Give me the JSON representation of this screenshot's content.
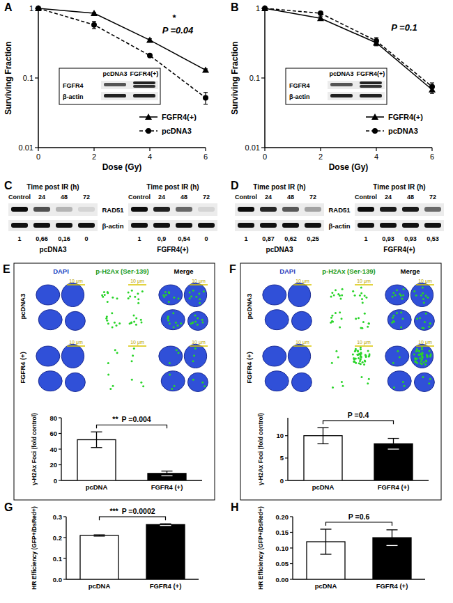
{
  "chart_data": [
    {
      "panel": "A",
      "type": "line",
      "log": "y",
      "x": [
        0,
        2,
        4,
        6
      ],
      "xlim": [
        0,
        6
      ],
      "xticks": [
        0,
        2,
        4,
        6
      ],
      "ylim": [
        0.01,
        1
      ],
      "yticks": [
        0.01,
        0.1,
        1
      ],
      "x_label": "Dose (Gy)",
      "y_label": "Surviving Fraction",
      "legend": "lower right",
      "series": [
        {
          "name": "FGFR4(+)",
          "color": "#000000",
          "marker": "triangle",
          "line_style": "solid",
          "values": [
            1,
            0.85,
            0.35,
            0.13
          ],
          "errors": [
            0,
            0.02,
            0.015,
            0.005
          ]
        },
        {
          "name": "pcDNA3",
          "color": "#000000",
          "marker": "circle",
          "line_style": "dashed",
          "values": [
            1,
            0.58,
            0.21,
            0.052
          ],
          "errors": [
            0,
            0.07,
            0.01,
            0.01
          ]
        }
      ],
      "annotations": [
        "*",
        "P =0.04"
      ],
      "inset": {
        "columns": [
          "pcDNA3",
          "FGFR4(+)"
        ],
        "rows": [
          "FGFR4",
          "β-actin"
        ]
      }
    },
    {
      "panel": "B",
      "type": "line",
      "log": "y",
      "x": [
        0,
        2,
        4,
        6
      ],
      "xlim": [
        0,
        6
      ],
      "xticks": [
        0,
        2,
        4,
        6
      ],
      "ylim": [
        0.01,
        1
      ],
      "yticks": [
        0.01,
        0.1,
        1
      ],
      "x_label": "Dose (Gy)",
      "y_label": "Surviving Fraction",
      "legend": "lower right",
      "series": [
        {
          "name": "FGFR4(+)",
          "color": "#000000",
          "marker": "triangle",
          "line_style": "solid",
          "values": [
            1,
            0.72,
            0.32,
            0.068
          ],
          "errors": [
            0,
            0.04,
            0.03,
            0.008
          ]
        },
        {
          "name": "pcDNA3",
          "color": "#000000",
          "marker": "circle",
          "line_style": "dashed",
          "values": [
            1,
            0.85,
            0.34,
            0.075
          ],
          "errors": [
            0,
            0.03,
            0.04,
            0.01
          ]
        }
      ],
      "annotations": [
        "P =0.1"
      ],
      "inset": {
        "columns": [
          "pcDNA3",
          "FGFR4(+)"
        ],
        "rows": [
          "FGFR4",
          "β-actin"
        ]
      }
    },
    {
      "panel": "E",
      "type": "bar",
      "categories": [
        "pcDNA",
        "FGFR4 (+)"
      ],
      "values": [
        52,
        9
      ],
      "errors": [
        10,
        3
      ],
      "colors": [
        "#ffffff",
        "#000000"
      ],
      "ylim": [
        0,
        80
      ],
      "yticks": [
        0,
        20,
        40,
        60,
        80
      ],
      "y_label": "γ-H2Ax Foci (fold control)",
      "annotations": [
        "**",
        "P =0.004"
      ],
      "micrograph": {
        "columns": [
          "DAPI",
          "p-H2Ax (Ser-139)",
          "Merge"
        ],
        "rows": [
          "pcDNA3",
          "FGFR4 (+)"
        ],
        "scale_bar": "10 μm"
      }
    },
    {
      "panel": "F",
      "type": "bar",
      "categories": [
        "pcDNA",
        "FGFR4 (+)"
      ],
      "values": [
        10,
        8.2
      ],
      "errors": [
        1.8,
        1.2
      ],
      "colors": [
        "#ffffff",
        "#000000"
      ],
      "ylim": [
        0,
        14
      ],
      "yticks": [
        0,
        5,
        10
      ],
      "y_label": "γ-H2Ax Foci (fold control)",
      "annotations": [
        "P =0.4"
      ],
      "micrograph": {
        "columns": [
          "DAPI",
          "p-H2Ax (Ser-139)",
          "Merge"
        ],
        "rows": [
          "pcDNA3",
          "FGFR4 (+)"
        ],
        "scale_bar": "10 μm"
      }
    },
    {
      "panel": "G",
      "type": "bar",
      "categories": [
        "pcDNA",
        "FGFR4 (+)"
      ],
      "values": [
        0.21,
        0.262
      ],
      "errors": [
        0.003,
        0.004
      ],
      "colors": [
        "#ffffff",
        "#000000"
      ],
      "ylim": [
        0,
        0.3
      ],
      "yticks": [
        {
          "value": 0,
          "label": "0.0"
        },
        0.1,
        0.2,
        0.3
      ],
      "y_label": "HR Efficiency (GFP+/DsRed+)",
      "annotations": [
        "***",
        "P =0.0002"
      ]
    },
    {
      "panel": "H",
      "type": "bar",
      "categories": [
        "pcDNA",
        "FGFR4 (+)"
      ],
      "values": [
        0.12,
        0.133
      ],
      "errors": [
        0.04,
        0.025
      ],
      "colors": [
        "#ffffff",
        "#000000"
      ],
      "ylim": [
        0,
        0.2
      ],
      "yticks": [
        {
          "value": 0,
          "label": "0.00"
        },
        {
          "value": 0.05,
          "label": "0.05"
        },
        {
          "value": 0.1,
          "label": "0.10"
        },
        {
          "value": 0.15,
          "label": "0.15"
        },
        {
          "value": 0.2,
          "label": "0.20"
        }
      ],
      "y_label": "HR Efficiency (GFP+/DsRed+)",
      "annotations": [
        "P =0.6"
      ]
    }
  ],
  "blots": [
    {
      "panel": "C",
      "header": "Time post IR (h)",
      "lanes": [
        "Control",
        "24",
        "48",
        "72"
      ],
      "rows": [
        "RAD51",
        "β-actin"
      ],
      "groups": [
        {
          "name": "pcDNA3",
          "values": [
            1,
            0.66,
            0.16,
            0
          ],
          "value_labels": [
            "1",
            "0,66",
            "0,16",
            "0"
          ]
        },
        {
          "name": "FGFR4(+)",
          "values": [
            1,
            0.9,
            0.54,
            0
          ],
          "value_labels": [
            "1",
            "0,9",
            "0,54",
            "0"
          ]
        }
      ]
    },
    {
      "panel": "D",
      "header": "Time post IR (h)",
      "lanes": [
        "Control",
        "24",
        "48",
        "72"
      ],
      "rows": [
        "RAD51",
        "β-actin"
      ],
      "groups": [
        {
          "name": "pcDNA3",
          "values": [
            1,
            0.87,
            0.62,
            0.25
          ],
          "value_labels": [
            "1",
            "0,87",
            "0,62",
            "0,25"
          ]
        },
        {
          "name": "FGFR4(+)",
          "values": [
            1,
            0.93,
            0.93,
            0.53
          ],
          "value_labels": [
            "1",
            "0,93",
            "0,93",
            "0,53"
          ]
        }
      ]
    }
  ]
}
